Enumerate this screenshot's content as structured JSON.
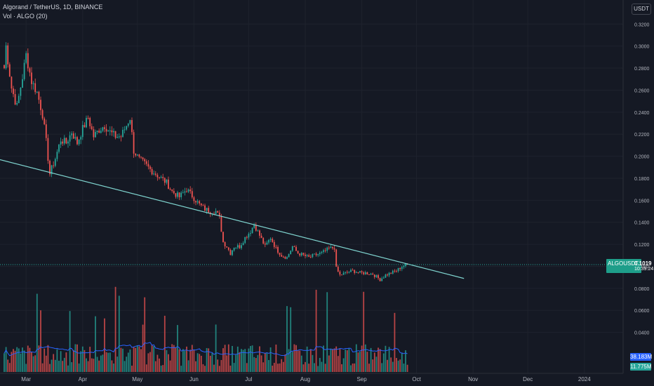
{
  "header": {
    "symbol_line": "Algorand / TetherUS, 1D, BINANCE",
    "volume_line": "Vol · ALGO (20)"
  },
  "currency_button": "USDT",
  "price_tag": {
    "symbol": "ALGOUSDT",
    "price": "0.1019",
    "countdown": "10:39:24"
  },
  "volume_tags": {
    "ma": "38.183M",
    "last": "11.775M"
  },
  "colors": {
    "background": "#151924",
    "grid": "#1e222d",
    "up": "#26a69a",
    "down": "#ef5350",
    "trendline": "#7fd4cf",
    "volume_ma": "#2962ff",
    "axis_text": "#b2b5be"
  },
  "chart_data": {
    "type": "candlestick",
    "title": "Algorand / TetherUS, 1D, BINANCE",
    "price_axis": {
      "ticks": [
        "0.3200",
        "0.3000",
        "0.2800",
        "0.2600",
        "0.2400",
        "0.2200",
        "0.2000",
        "0.1800",
        "0.1600",
        "0.1400",
        "0.1200",
        "0.1000",
        "0.0800",
        "0.0600",
        "0.0400"
      ],
      "range": [
        0.015,
        0.33
      ]
    },
    "time_axis": {
      "ticks": [
        "Mar",
        "Apr",
        "May",
        "Jun",
        "Jul",
        "Aug",
        "Sep",
        "Oct",
        "Nov",
        "Dec",
        "2024"
      ]
    },
    "price_path": [
      [
        "2023-02-17",
        0.28
      ],
      [
        "2023-02-18",
        0.3
      ],
      [
        "2023-02-21",
        0.262
      ],
      [
        "2023-02-24",
        0.245
      ],
      [
        "2023-02-27",
        0.272
      ],
      [
        "2023-03-01",
        0.292
      ],
      [
        "2023-03-04",
        0.268
      ],
      [
        "2023-03-07",
        0.258
      ],
      [
        "2023-03-10",
        0.238
      ],
      [
        "2023-03-12",
        0.213
      ],
      [
        "2023-03-14",
        0.184
      ],
      [
        "2023-03-17",
        0.198
      ],
      [
        "2023-03-20",
        0.215
      ],
      [
        "2023-03-23",
        0.212
      ],
      [
        "2023-03-26",
        0.222
      ],
      [
        "2023-03-29",
        0.212
      ],
      [
        "2023-04-01",
        0.225
      ],
      [
        "2023-04-04",
        0.235
      ],
      [
        "2023-04-07",
        0.218
      ],
      [
        "2023-04-10",
        0.224
      ],
      [
        "2023-04-13",
        0.228
      ],
      [
        "2023-04-16",
        0.222
      ],
      [
        "2023-04-19",
        0.218
      ],
      [
        "2023-04-22",
        0.218
      ],
      [
        "2023-04-25",
        0.228
      ],
      [
        "2023-04-27",
        0.235
      ],
      [
        "2023-04-29",
        0.205
      ],
      [
        "2023-05-02",
        0.197
      ],
      [
        "2023-05-05",
        0.193
      ],
      [
        "2023-05-08",
        0.188
      ],
      [
        "2023-05-11",
        0.184
      ],
      [
        "2023-05-14",
        0.18
      ],
      [
        "2023-05-17",
        0.176
      ],
      [
        "2023-05-20",
        0.168
      ],
      [
        "2023-05-24",
        0.163
      ],
      [
        "2023-05-28",
        0.17
      ],
      [
        "2023-06-01",
        0.162
      ],
      [
        "2023-06-04",
        0.156
      ],
      [
        "2023-06-07",
        0.152
      ],
      [
        "2023-06-10",
        0.15
      ],
      [
        "2023-06-13",
        0.15
      ],
      [
        "2023-06-15",
        0.144
      ],
      [
        "2023-06-17",
        0.122
      ],
      [
        "2023-06-19",
        0.118
      ],
      [
        "2023-06-21",
        0.112
      ],
      [
        "2023-06-23",
        0.118
      ],
      [
        "2023-06-26",
        0.118
      ],
      [
        "2023-06-29",
        0.126
      ],
      [
        "2023-07-02",
        0.132
      ],
      [
        "2023-07-04",
        0.138
      ],
      [
        "2023-07-07",
        0.128
      ],
      [
        "2023-07-10",
        0.118
      ],
      [
        "2023-07-13",
        0.126
      ],
      [
        "2023-07-16",
        0.116
      ],
      [
        "2023-07-19",
        0.11
      ],
      [
        "2023-07-22",
        0.108
      ],
      [
        "2023-07-25",
        0.118
      ],
      [
        "2023-07-28",
        0.112
      ],
      [
        "2023-07-31",
        0.11
      ],
      [
        "2023-08-03",
        0.108
      ],
      [
        "2023-08-06",
        0.11
      ],
      [
        "2023-08-10",
        0.112
      ],
      [
        "2023-08-14",
        0.116
      ],
      [
        "2023-08-17",
        0.117
      ],
      [
        "2023-08-18",
        0.098
      ],
      [
        "2023-08-20",
        0.092
      ],
      [
        "2023-08-23",
        0.094
      ],
      [
        "2023-08-27",
        0.096
      ],
      [
        "2023-08-31",
        0.094
      ],
      [
        "2023-09-03",
        0.094
      ],
      [
        "2023-09-07",
        0.093
      ],
      [
        "2023-09-11",
        0.088
      ],
      [
        "2023-09-14",
        0.092
      ],
      [
        "2023-09-17",
        0.094
      ],
      [
        "2023-09-20",
        0.096
      ],
      [
        "2023-09-23",
        0.1
      ],
      [
        "2023-09-26",
        0.1019
      ]
    ],
    "trendline": [
      [
        "2023-02-12",
        0.198
      ],
      [
        "2023-10-27",
        0.089
      ]
    ],
    "volume_ma_last": 38.183,
    "volume_last": 11.775
  }
}
